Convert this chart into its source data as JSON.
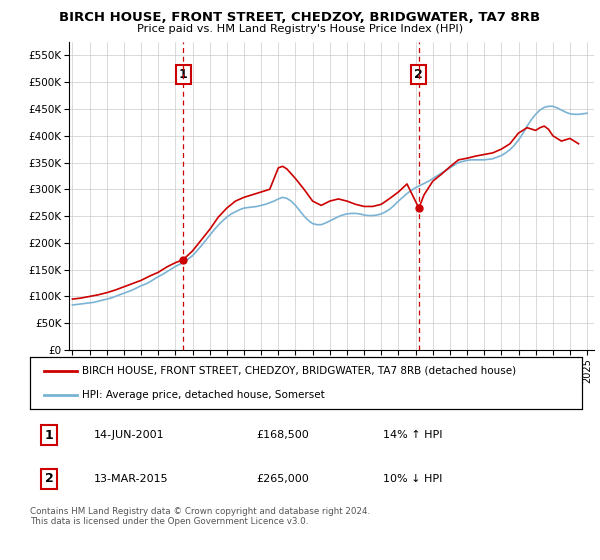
{
  "title": "BIRCH HOUSE, FRONT STREET, CHEDZOY, BRIDGWATER, TA7 8RB",
  "subtitle": "Price paid vs. HM Land Registry's House Price Index (HPI)",
  "legend_line1": "BIRCH HOUSE, FRONT STREET, CHEDZOY, BRIDGWATER, TA7 8RB (detached house)",
  "legend_line2": "HPI: Average price, detached house, Somerset",
  "annotation1_label": "1",
  "annotation1_date": "14-JUN-2001",
  "annotation1_price": "£168,500",
  "annotation1_hpi": "14% ↑ HPI",
  "annotation2_label": "2",
  "annotation2_date": "13-MAR-2015",
  "annotation2_price": "£265,000",
  "annotation2_hpi": "10% ↓ HPI",
  "footer": "Contains HM Land Registry data © Crown copyright and database right 2024.\nThis data is licensed under the Open Government Licence v3.0.",
  "hpi_color": "#7ab3d4",
  "price_color": "#cc0000",
  "annotation_vline_color": "#cc0000",
  "ylim": [
    0,
    575000
  ],
  "yticks": [
    0,
    50000,
    100000,
    150000,
    200000,
    250000,
    300000,
    350000,
    400000,
    450000,
    500000,
    550000
  ],
  "hpi_x": [
    1995.0,
    1995.25,
    1995.5,
    1995.75,
    1996.0,
    1996.25,
    1996.5,
    1996.75,
    1997.0,
    1997.25,
    1997.5,
    1997.75,
    1998.0,
    1998.25,
    1998.5,
    1998.75,
    1999.0,
    1999.25,
    1999.5,
    1999.75,
    2000.0,
    2000.25,
    2000.5,
    2000.75,
    2001.0,
    2001.25,
    2001.5,
    2001.75,
    2002.0,
    2002.25,
    2002.5,
    2002.75,
    2003.0,
    2003.25,
    2003.5,
    2003.75,
    2004.0,
    2004.25,
    2004.5,
    2004.75,
    2005.0,
    2005.25,
    2005.5,
    2005.75,
    2006.0,
    2006.25,
    2006.5,
    2006.75,
    2007.0,
    2007.25,
    2007.5,
    2007.75,
    2008.0,
    2008.25,
    2008.5,
    2008.75,
    2009.0,
    2009.25,
    2009.5,
    2009.75,
    2010.0,
    2010.25,
    2010.5,
    2010.75,
    2011.0,
    2011.25,
    2011.5,
    2011.75,
    2012.0,
    2012.25,
    2012.5,
    2012.75,
    2013.0,
    2013.25,
    2013.5,
    2013.75,
    2014.0,
    2014.25,
    2014.5,
    2014.75,
    2015.0,
    2015.25,
    2015.5,
    2015.75,
    2016.0,
    2016.25,
    2016.5,
    2016.75,
    2017.0,
    2017.25,
    2017.5,
    2017.75,
    2018.0,
    2018.25,
    2018.5,
    2018.75,
    2019.0,
    2019.25,
    2019.5,
    2019.75,
    2020.0,
    2020.25,
    2020.5,
    2020.75,
    2021.0,
    2021.25,
    2021.5,
    2021.75,
    2022.0,
    2022.25,
    2022.5,
    2022.75,
    2023.0,
    2023.25,
    2023.5,
    2023.75,
    2024.0,
    2024.25,
    2024.5,
    2024.75,
    2025.0
  ],
  "hpi_y": [
    84000,
    85000,
    86000,
    87000,
    88000,
    89000,
    91000,
    93000,
    95000,
    97000,
    100000,
    103000,
    106000,
    109000,
    112000,
    116000,
    120000,
    123000,
    127000,
    132000,
    137000,
    141000,
    146000,
    151000,
    156000,
    160000,
    164000,
    170000,
    176000,
    185000,
    194000,
    204000,
    214000,
    224000,
    233000,
    241000,
    248000,
    254000,
    258000,
    262000,
    265000,
    266000,
    267000,
    268000,
    270000,
    272000,
    275000,
    278000,
    282000,
    285000,
    283000,
    278000,
    270000,
    260000,
    250000,
    242000,
    236000,
    234000,
    234000,
    237000,
    241000,
    245000,
    249000,
    252000,
    254000,
    255000,
    255000,
    254000,
    252000,
    251000,
    251000,
    252000,
    254000,
    258000,
    263000,
    270000,
    278000,
    285000,
    292000,
    298000,
    303000,
    307000,
    311000,
    315000,
    320000,
    325000,
    330000,
    335000,
    340000,
    345000,
    350000,
    352000,
    354000,
    355000,
    355000,
    355000,
    355000,
    356000,
    357000,
    360000,
    363000,
    368000,
    374000,
    382000,
    392000,
    404000,
    418000,
    430000,
    440000,
    448000,
    453000,
    455000,
    455000,
    452000,
    448000,
    444000,
    441000,
    440000,
    440000,
    441000,
    442000
  ],
  "price_x": [
    1995.0,
    1995.5,
    1996.0,
    1996.5,
    1997.0,
    1997.5,
    1998.0,
    1998.5,
    1999.0,
    1999.5,
    2000.0,
    2000.5,
    2001.0,
    2001.45,
    2002.0,
    2002.5,
    2003.0,
    2003.5,
    2004.0,
    2004.5,
    2005.0,
    2005.5,
    2006.0,
    2006.5,
    2007.0,
    2007.25,
    2007.5,
    2008.0,
    2008.5,
    2009.0,
    2009.5,
    2010.0,
    2010.5,
    2011.0,
    2011.5,
    2012.0,
    2012.5,
    2013.0,
    2013.5,
    2014.0,
    2014.5,
    2015.19,
    2015.5,
    2016.0,
    2016.5,
    2017.0,
    2017.5,
    2018.0,
    2018.5,
    2019.0,
    2019.5,
    2020.0,
    2020.5,
    2021.0,
    2021.5,
    2022.0,
    2022.25,
    2022.5,
    2022.75,
    2023.0,
    2023.5,
    2024.0,
    2024.5
  ],
  "price_y": [
    95000,
    97000,
    100000,
    103000,
    107000,
    112000,
    118000,
    124000,
    130000,
    138000,
    145000,
    155000,
    163000,
    168500,
    185000,
    205000,
    225000,
    248000,
    265000,
    278000,
    285000,
    290000,
    295000,
    300000,
    340000,
    343000,
    338000,
    320000,
    300000,
    278000,
    270000,
    278000,
    282000,
    278000,
    272000,
    268000,
    268000,
    272000,
    283000,
    295000,
    310000,
    265000,
    290000,
    315000,
    328000,
    342000,
    355000,
    358000,
    362000,
    365000,
    368000,
    375000,
    385000,
    405000,
    415000,
    410000,
    415000,
    418000,
    412000,
    400000,
    390000,
    395000,
    385000
  ],
  "sale1_x": 2001.45,
  "sale1_y": 168500,
  "sale2_x": 2015.19,
  "sale2_y": 265000,
  "xlim_start": 1994.8,
  "xlim_end": 2025.4,
  "xticks": [
    1995,
    1996,
    1997,
    1998,
    1999,
    2000,
    2001,
    2002,
    2003,
    2004,
    2005,
    2006,
    2007,
    2008,
    2009,
    2010,
    2011,
    2012,
    2013,
    2014,
    2015,
    2016,
    2017,
    2018,
    2019,
    2020,
    2021,
    2022,
    2023,
    2024,
    2025
  ]
}
